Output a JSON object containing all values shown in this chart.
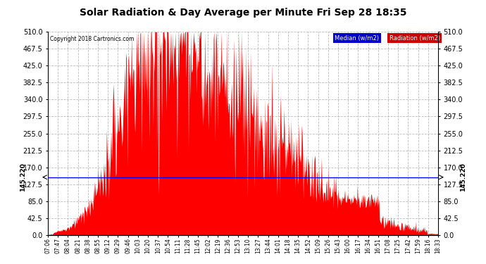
{
  "title": "Solar Radiation & Day Average per Minute Fri Sep 28 18:35",
  "copyright": "Copyright 2018 Cartronics.com",
  "legend_median": "Median (w/m2)",
  "legend_radiation": "Radiation (w/m2)",
  "median_value": 145.22,
  "y_ticks": [
    0.0,
    42.5,
    85.0,
    127.5,
    170.0,
    212.5,
    255.0,
    297.5,
    340.0,
    382.5,
    425.0,
    467.5,
    510.0
  ],
  "x_tick_labels": [
    "07:06",
    "07:47",
    "08:04",
    "08:21",
    "08:38",
    "08:55",
    "09:12",
    "09:29",
    "09:46",
    "10:03",
    "10:20",
    "10:37",
    "10:54",
    "11:11",
    "11:28",
    "11:45",
    "12:02",
    "12:19",
    "12:36",
    "12:53",
    "13:10",
    "13:27",
    "13:44",
    "14:01",
    "14:18",
    "14:35",
    "14:52",
    "15:09",
    "15:26",
    "15:43",
    "16:00",
    "16:17",
    "16:34",
    "16:51",
    "17:08",
    "17:25",
    "17:42",
    "17:59",
    "18:16",
    "18:33"
  ],
  "bar_color": "#FF0000",
  "median_line_color": "#0000FF",
  "background_color": "#FFFFFF",
  "grid_color": "#BBBBBB",
  "ylim": [
    0,
    510
  ],
  "n_minutes": 687
}
